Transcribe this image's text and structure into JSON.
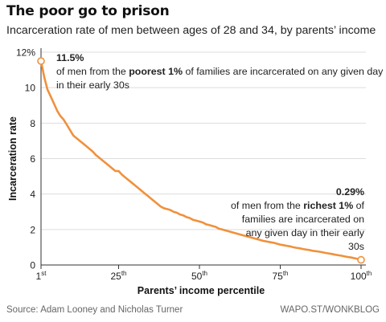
{
  "header": {
    "title": "The poor go to prison",
    "subtitle": "Incarceration rate of men between ages of 28 and 34, by parents’ income"
  },
  "annotations": {
    "poorest": {
      "value": "11.5%",
      "text_pre": "of men from the ",
      "text_bold": "poorest 1%",
      "text_post": " of families are incarcerated on any given day in their early 30s"
    },
    "richest": {
      "value": "0.29%",
      "text_pre": "of men from the ",
      "text_bold": "richest 1%",
      "text_post": " of families are incarcerated on any given day in their early 30s"
    }
  },
  "footer": {
    "source": "Source: Adam Looney and Nicholas Turner",
    "credit": "WAPO.ST/WONKBLOG"
  },
  "colors": {
    "line": "#f0913c",
    "grid": "#dddddd",
    "axis": "#333333"
  },
  "chart_data": {
    "type": "line",
    "title": "The poor go to prison",
    "subtitle": "Incarceration rate of men between ages of 28 and 34, by parents’ income",
    "xlabel": "Parents’ income percentile",
    "ylabel": "Incarceration rate",
    "xlim": [
      1,
      100
    ],
    "ylim": [
      0,
      12
    ],
    "grid": true,
    "y_ticks": [
      {
        "value": 0,
        "label": "0"
      },
      {
        "value": 2,
        "label": "2"
      },
      {
        "value": 4,
        "label": "4"
      },
      {
        "value": 6,
        "label": "6"
      },
      {
        "value": 8,
        "label": "8"
      },
      {
        "value": 10,
        "label": "10"
      },
      {
        "value": 12,
        "label": "12%"
      }
    ],
    "x_ticks": [
      {
        "value": 1,
        "num": "1",
        "sup": "st"
      },
      {
        "value": 25,
        "num": "25",
        "sup": "th"
      },
      {
        "value": 50,
        "num": "50",
        "sup": "th"
      },
      {
        "value": 75,
        "num": "75",
        "sup": "th"
      },
      {
        "value": 100,
        "num": "100",
        "sup": "th"
      }
    ],
    "series": [
      {
        "x": [
          1,
          2,
          3,
          4,
          5,
          6,
          7,
          8,
          9,
          10,
          11,
          12,
          13,
          14,
          15,
          16,
          17,
          18,
          19,
          20,
          21,
          22,
          23,
          24,
          25,
          26,
          27,
          28,
          29,
          30,
          31,
          32,
          33,
          34,
          35,
          36,
          37,
          38,
          39,
          40,
          41,
          42,
          43,
          44,
          45,
          46,
          47,
          48,
          49,
          50,
          51,
          52,
          53,
          54,
          55,
          56,
          57,
          58,
          59,
          60,
          61,
          62,
          63,
          64,
          65,
          66,
          67,
          68,
          69,
          70,
          71,
          72,
          73,
          74,
          75,
          76,
          77,
          78,
          79,
          80,
          81,
          82,
          83,
          84,
          85,
          86,
          87,
          88,
          89,
          90,
          91,
          92,
          93,
          94,
          95,
          96,
          97,
          98,
          99,
          100
        ],
        "y": [
          11.5,
          10.6,
          9.9,
          9.5,
          9.1,
          8.7,
          8.4,
          8.2,
          7.9,
          7.6,
          7.3,
          7.15,
          7.0,
          6.85,
          6.7,
          6.55,
          6.4,
          6.2,
          6.05,
          5.9,
          5.75,
          5.6,
          5.45,
          5.3,
          5.3,
          5.1,
          4.95,
          4.8,
          4.65,
          4.5,
          4.35,
          4.2,
          4.05,
          3.9,
          3.75,
          3.6,
          3.45,
          3.3,
          3.2,
          3.15,
          3.1,
          3.0,
          2.95,
          2.85,
          2.8,
          2.7,
          2.65,
          2.55,
          2.5,
          2.45,
          2.4,
          2.3,
          2.25,
          2.2,
          2.15,
          2.05,
          2.0,
          1.95,
          1.9,
          1.85,
          1.8,
          1.75,
          1.7,
          1.65,
          1.6,
          1.55,
          1.5,
          1.45,
          1.4,
          1.35,
          1.32,
          1.28,
          1.25,
          1.2,
          1.15,
          1.12,
          1.08,
          1.05,
          1.0,
          0.97,
          0.94,
          0.9,
          0.87,
          0.84,
          0.8,
          0.78,
          0.75,
          0.72,
          0.68,
          0.65,
          0.62,
          0.58,
          0.55,
          0.52,
          0.48,
          0.45,
          0.42,
          0.38,
          0.34,
          0.29
        ]
      }
    ],
    "markers": [
      {
        "x": 1,
        "y": 11.5
      },
      {
        "x": 100,
        "y": 0.29
      }
    ]
  }
}
